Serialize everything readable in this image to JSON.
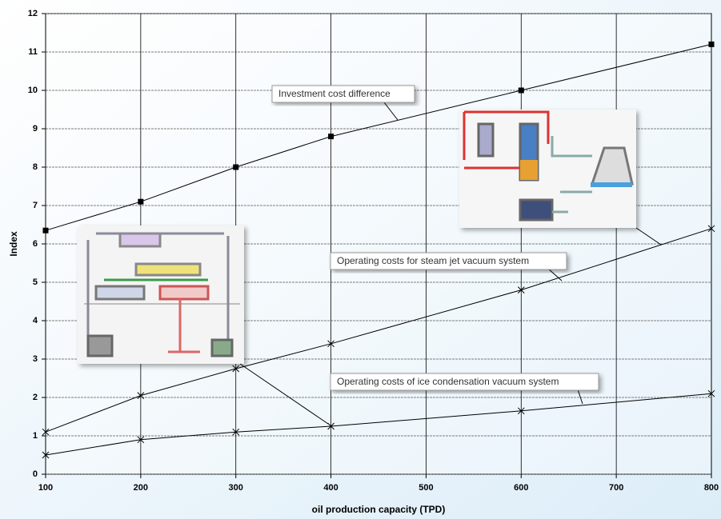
{
  "chart_data": {
    "type": "line",
    "x": [
      100,
      200,
      300,
      400,
      600,
      800
    ],
    "series": [
      {
        "name": "Investment cost difference",
        "color": "#000000",
        "marker": "square",
        "values": [
          6.35,
          7.1,
          8.0,
          8.8,
          10.0,
          11.2
        ]
      },
      {
        "name": "Operating costs for steam jet vacuum system",
        "color": "#000000",
        "marker": "x",
        "values": [
          1.1,
          2.05,
          2.75,
          3.4,
          4.8,
          6.4
        ]
      },
      {
        "name": "Operating costs of ice condensation vacuum system",
        "color": "#000000",
        "marker": "x",
        "values": [
          0.5,
          0.9,
          1.1,
          1.25,
          1.65,
          2.1
        ]
      }
    ],
    "xlabel": "oil production capacity (TPD)",
    "ylabel": "Index",
    "xlim": [
      100,
      800
    ],
    "xticks": [
      100,
      200,
      300,
      400,
      500,
      600,
      700,
      800
    ],
    "ylim": [
      0,
      12
    ],
    "yticks": [
      0,
      1,
      2,
      3,
      4,
      5,
      6,
      7,
      8,
      9,
      10,
      11,
      12
    ],
    "grid": true
  }
}
